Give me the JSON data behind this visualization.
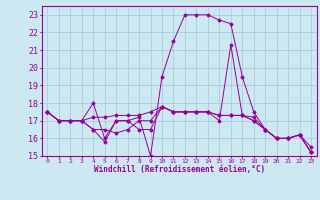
{
  "xlabel": "Windchill (Refroidissement éolien,°C)",
  "bg_color": "#cce8f0",
  "grid_color": "#aaccdd",
  "line_color": "#990099",
  "x": [
    0,
    1,
    2,
    3,
    4,
    5,
    6,
    7,
    8,
    9,
    10,
    11,
    12,
    13,
    14,
    15,
    16,
    17,
    18,
    19,
    20,
    21,
    22,
    23
  ],
  "series": [
    [
      17.5,
      17.0,
      17.0,
      17.0,
      17.2,
      17.2,
      17.3,
      17.3,
      17.3,
      17.5,
      17.8,
      17.5,
      17.5,
      17.5,
      17.5,
      17.3,
      17.3,
      17.3,
      17.2,
      16.5,
      16.0,
      16.0,
      16.2,
      15.5
    ],
    [
      17.5,
      17.0,
      17.0,
      17.0,
      16.5,
      15.8,
      17.0,
      17.0,
      17.2,
      15.0,
      19.5,
      21.5,
      23.0,
      23.0,
      23.0,
      22.7,
      22.5,
      19.5,
      17.5,
      16.5,
      16.0,
      16.0,
      16.2,
      15.2
    ],
    [
      17.5,
      17.0,
      17.0,
      17.0,
      18.0,
      16.0,
      17.0,
      17.0,
      16.5,
      16.5,
      17.8,
      17.5,
      17.5,
      17.5,
      17.5,
      17.0,
      21.3,
      17.3,
      17.0,
      16.5,
      16.0,
      16.0,
      16.2,
      15.2
    ],
    [
      17.5,
      17.0,
      17.0,
      17.0,
      16.5,
      16.5,
      16.3,
      16.5,
      17.0,
      17.0,
      17.8,
      17.5,
      17.5,
      17.5,
      17.5,
      17.3,
      17.3,
      17.3,
      17.0,
      16.5,
      16.0,
      16.0,
      16.2,
      15.2
    ]
  ],
  "ylim": [
    15,
    23.5
  ],
  "yticks": [
    15,
    16,
    17,
    18,
    19,
    20,
    21,
    22,
    23
  ],
  "xlim": [
    -0.5,
    23.5
  ]
}
